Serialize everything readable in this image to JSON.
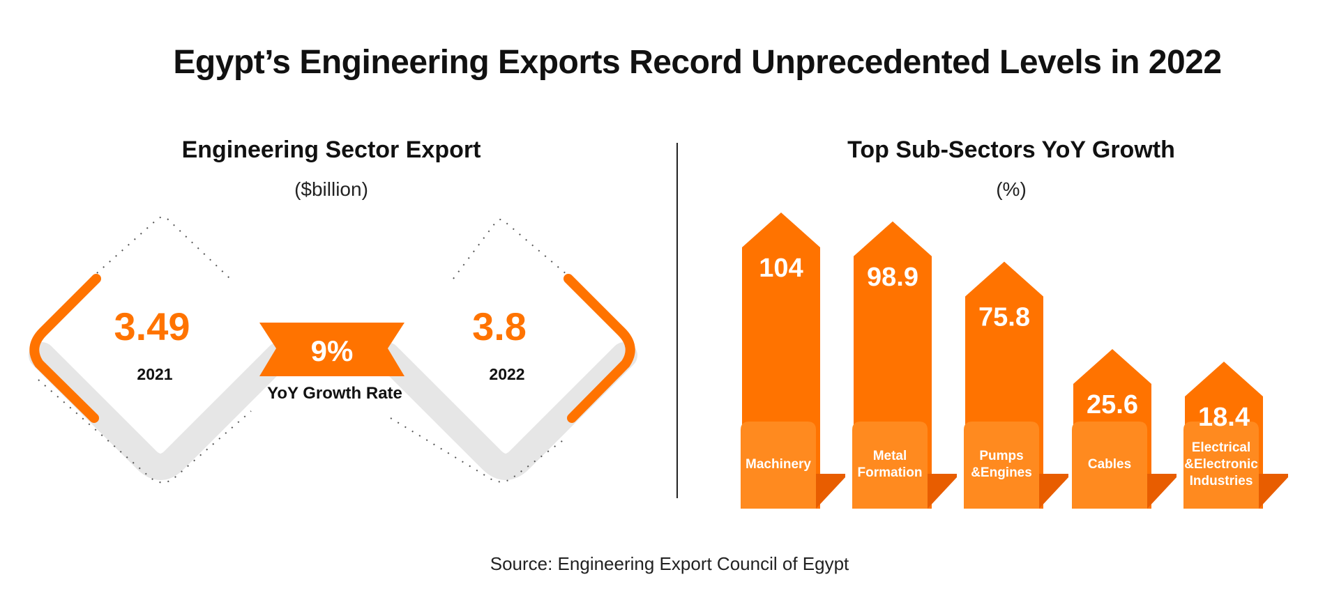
{
  "title": "Egypt’s Engineering Exports Record Unprecedented Levels in 2022",
  "left_panel": {
    "title": "Engineering Sector Export",
    "unit": "($billion)",
    "growth_value": "9%",
    "growth_label": "YoY Growth Rate"
  },
  "right_panel": {
    "title": "Top Sub-Sectors YoY Growth",
    "unit": "(%)"
  },
  "source": "Source: Engineering Export Council of Egypt",
  "colors": {
    "accent": "#ff7300",
    "accent_dark": "#e85d00",
    "accent_light": "#ff8a1f",
    "text": "#111111",
    "shadow": "#e2e2e2"
  },
  "chart_data": [
    {
      "type": "bar",
      "title": "Engineering Sector Export",
      "subtitle": "($billion)",
      "categories": [
        "2021",
        "2022"
      ],
      "values": [
        3.49,
        3.8
      ],
      "value_labels": [
        "3.49",
        "3.8"
      ]
    },
    {
      "type": "bar",
      "title": "Top Sub-Sectors YoY Growth",
      "subtitle": "(%)",
      "categories": [
        "Machinery",
        "Metal Formation",
        "Pumps &Engines",
        "Cables",
        "Electrical &Electronic Industries"
      ],
      "category_lines": [
        [
          "Machinery"
        ],
        [
          "Metal",
          "Formation"
        ],
        [
          "Pumps",
          "&Engines"
        ],
        [
          "Cables"
        ],
        [
          "Electrical",
          "&Electronic",
          "Industries"
        ]
      ],
      "values": [
        104,
        98.9,
        75.8,
        25.6,
        18.4
      ],
      "value_labels": [
        "104",
        "98.9",
        "75.8",
        "25.6",
        "18.4"
      ]
    }
  ]
}
